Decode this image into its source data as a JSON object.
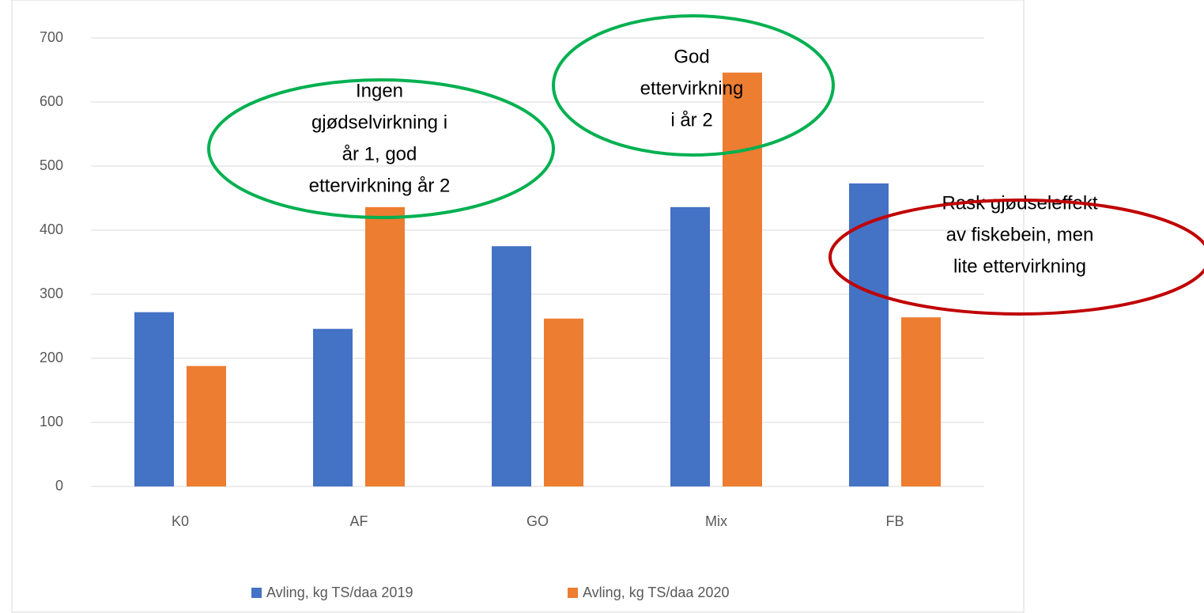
{
  "chart_data": {
    "type": "bar",
    "categories": [
      "K0",
      "AF",
      "GO",
      "Mix",
      "FB"
    ],
    "series": [
      {
        "name": "Avling, kg TS/daa 2019",
        "color": "#4472c4",
        "values": [
          272,
          246,
          375,
          436,
          473
        ]
      },
      {
        "name": "Avling, kg TS/daa 2020",
        "color": "#ed7d31",
        "values": [
          188,
          436,
          262,
          646,
          264
        ]
      }
    ],
    "ylim": [
      0,
      700
    ],
    "yticks": [
      0,
      100,
      200,
      300,
      400,
      500,
      600,
      700
    ],
    "grid": true,
    "legend": "bottom",
    "annotations": [
      {
        "lines": [
          "Ingen",
          "gjødselvirkning i",
          "år 1, god",
          "ettervirkning år 2"
        ],
        "color": "#00b050"
      },
      {
        "lines": [
          "God",
          "ettervirkning",
          "i år 2"
        ],
        "color": "#00b050"
      },
      {
        "lines": [
          "Rask gjødseleffekt",
          "av fiskebein, men",
          "lite ettervirkning"
        ],
        "color": "#c00000"
      }
    ]
  }
}
